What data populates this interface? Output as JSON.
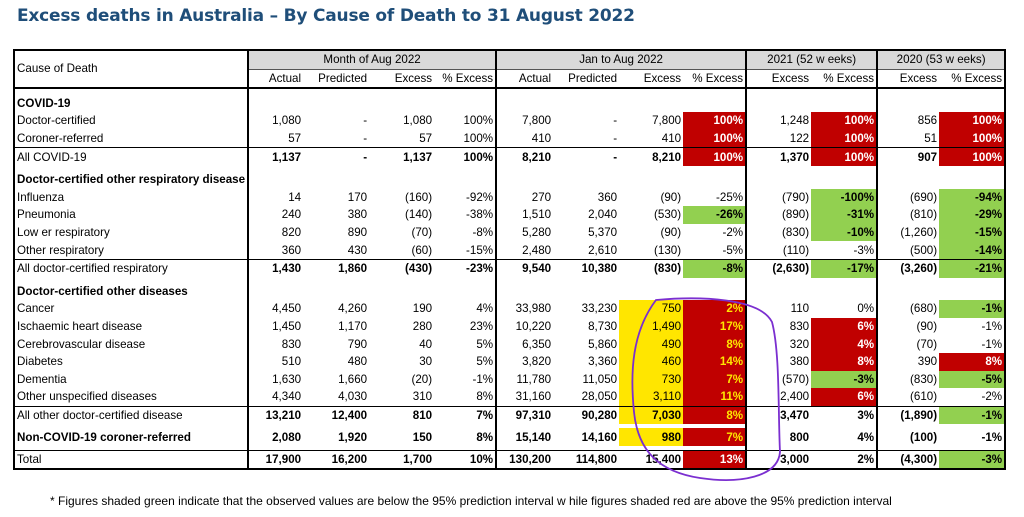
{
  "title": "Excess deaths in Australia – By Cause of Death to 31 August 2022",
  "table": {
    "cause_header": "Cause of Death",
    "groups": [
      {
        "label": "Month of Aug 2022",
        "columns": [
          "Actual",
          "Predicted",
          "Excess",
          "% Excess"
        ]
      },
      {
        "label": "Jan to Aug 2022",
        "columns": [
          "Actual",
          "Predicted",
          "Excess",
          "% Excess"
        ]
      },
      {
        "label": "2021 (52 w eeks)",
        "columns": [
          "Excess",
          "% Excess"
        ]
      },
      {
        "label": "2020 (53 w eeks)",
        "columns": [
          "Excess",
          "% Excess"
        ]
      }
    ],
    "sections": [
      {
        "heading": "COVID-19",
        "rows": [
          {
            "label": "Doctor-certified",
            "values": [
              "1,080",
              "-",
              "1,080",
              "100%",
              "7,800",
              "-",
              "7,800",
              "100%",
              "1,248",
              "100%",
              "856",
              "100%"
            ],
            "shading": [
              "",
              "",
              "",
              "",
              "",
              "",
              "",
              "red",
              "",
              "red",
              "",
              "red"
            ]
          },
          {
            "label": "Coroner-referred",
            "values": [
              "57",
              "-",
              "57",
              "100%",
              "410",
              "-",
              "410",
              "100%",
              "122",
              "100%",
              "51",
              "100%"
            ],
            "shading": [
              "",
              "",
              "",
              "",
              "",
              "",
              "",
              "red",
              "",
              "red",
              "",
              "red"
            ]
          }
        ],
        "total": {
          "label": "All COVID-19",
          "values": [
            "1,137",
            "-",
            "1,137",
            "100%",
            "8,210",
            "-",
            "8,210",
            "100%",
            "1,370",
            "100%",
            "907",
            "100%"
          ],
          "shading": [
            "",
            "",
            "",
            "",
            "",
            "",
            "",
            "red",
            "",
            "red",
            "",
            "red"
          ]
        }
      },
      {
        "heading": "Doctor-certified other respiratory disease",
        "rows": [
          {
            "label": "Influenza",
            "values": [
              "14",
              "170",
              "(160)",
              "-92%",
              "270",
              "360",
              "(90)",
              "-25%",
              "(790)",
              "-100%",
              "(690)",
              "-94%"
            ],
            "shading": [
              "",
              "",
              "",
              "",
              "",
              "",
              "",
              "",
              "",
              "green",
              "",
              "green"
            ]
          },
          {
            "label": "Pneumonia",
            "values": [
              "240",
              "380",
              "(140)",
              "-38%",
              "1,510",
              "2,040",
              "(530)",
              "-26%",
              "(890)",
              "-31%",
              "(810)",
              "-29%"
            ],
            "shading": [
              "",
              "",
              "",
              "",
              "",
              "",
              "",
              "green",
              "",
              "green",
              "",
              "green"
            ]
          },
          {
            "label": "Low er respiratory",
            "values": [
              "820",
              "890",
              "(70)",
              "-8%",
              "5,280",
              "5,370",
              "(90)",
              "-2%",
              "(830)",
              "-10%",
              "(1,260)",
              "-15%"
            ],
            "shading": [
              "",
              "",
              "",
              "",
              "",
              "",
              "",
              "",
              "",
              "green",
              "",
              "green"
            ]
          },
          {
            "label": "Other respiratory",
            "values": [
              "360",
              "430",
              "(60)",
              "-15%",
              "2,480",
              "2,610",
              "(130)",
              "-5%",
              "(110)",
              "-3%",
              "(500)",
              "-14%"
            ],
            "shading": [
              "",
              "",
              "",
              "",
              "",
              "",
              "",
              "",
              "",
              "",
              "",
              "green"
            ]
          }
        ],
        "total": {
          "label": "All doctor-certified respiratory",
          "values": [
            "1,430",
            "1,860",
            "(430)",
            "-23%",
            "9,540",
            "10,380",
            "(830)",
            "-8%",
            "(2,630)",
            "-17%",
            "(3,260)",
            "-21%"
          ],
          "shading": [
            "",
            "",
            "",
            "",
            "",
            "",
            "",
            "green",
            "",
            "green",
            "",
            "green"
          ]
        }
      },
      {
        "heading": "Doctor-certified other diseases",
        "rows": [
          {
            "label": "Cancer",
            "values": [
              "4,450",
              "4,260",
              "190",
              "4%",
              "33,980",
              "33,230",
              "750",
              "2%",
              "110",
              "0%",
              "(680)",
              "-1%"
            ],
            "shading": [
              "",
              "",
              "",
              "",
              "",
              "",
              "yellow",
              "redY",
              "",
              "",
              "",
              "green"
            ]
          },
          {
            "label": "Ischaemic heart disease",
            "values": [
              "1,450",
              "1,170",
              "280",
              "23%",
              "10,220",
              "8,730",
              "1,490",
              "17%",
              "830",
              "6%",
              "(90)",
              "-1%"
            ],
            "shading": [
              "",
              "",
              "",
              "",
              "",
              "",
              "yellow",
              "redY",
              "",
              "red",
              "",
              ""
            ]
          },
          {
            "label": "Cerebrovascular disease",
            "values": [
              "830",
              "790",
              "40",
              "5%",
              "6,350",
              "5,860",
              "490",
              "8%",
              "320",
              "4%",
              "(70)",
              "-1%"
            ],
            "shading": [
              "",
              "",
              "",
              "",
              "",
              "",
              "yellow",
              "redY",
              "",
              "red",
              "",
              ""
            ]
          },
          {
            "label": "Diabetes",
            "values": [
              "510",
              "480",
              "30",
              "5%",
              "3,820",
              "3,360",
              "460",
              "14%",
              "380",
              "8%",
              "390",
              "8%"
            ],
            "shading": [
              "",
              "",
              "",
              "",
              "",
              "",
              "yellow",
              "redY",
              "",
              "red",
              "",
              "red"
            ]
          },
          {
            "label": "Dementia",
            "values": [
              "1,630",
              "1,660",
              "(20)",
              "-1%",
              "11,780",
              "11,050",
              "730",
              "7%",
              "(570)",
              "-3%",
              "(830)",
              "-5%"
            ],
            "shading": [
              "",
              "",
              "",
              "",
              "",
              "",
              "yellow",
              "redY",
              "",
              "green",
              "",
              "green"
            ]
          },
          {
            "label": "Other unspecified diseases",
            "values": [
              "4,340",
              "4,030",
              "310",
              "8%",
              "31,160",
              "28,050",
              "3,110",
              "11%",
              "2,400",
              "6%",
              "(610)",
              "-2%"
            ],
            "shading": [
              "",
              "",
              "",
              "",
              "",
              "",
              "yellow",
              "redY",
              "",
              "red",
              "",
              ""
            ]
          }
        ],
        "total": {
          "label": "All other doctor-certified disease",
          "values": [
            "13,210",
            "12,400",
            "810",
            "7%",
            "97,310",
            "90,280",
            "7,030",
            "8%",
            "3,470",
            "3%",
            "(1,890)",
            "-1%"
          ],
          "shading": [
            "",
            "",
            "",
            "",
            "",
            "",
            "yellow",
            "redY",
            "",
            "",
            "",
            "green"
          ]
        }
      }
    ],
    "coroner_row": {
      "label": "Non-COVID-19 coroner-referred",
      "values": [
        "2,080",
        "1,920",
        "150",
        "8%",
        "15,140",
        "14,160",
        "980",
        "7%",
        "800",
        "4%",
        "(100)",
        "-1%"
      ],
      "shading": [
        "",
        "",
        "",
        "",
        "",
        "",
        "yellow",
        "redY",
        "",
        "",
        "",
        ""
      ]
    },
    "total_row": {
      "label": "Total",
      "values": [
        "17,900",
        "16,200",
        "1,700",
        "10%",
        "130,200",
        "114,800",
        "15,400",
        "13%",
        "3,000",
        "2%",
        "(4,300)",
        "-3%"
      ],
      "shading": [
        "",
        "",
        "",
        "",
        "",
        "",
        "",
        "red",
        "",
        "",
        "",
        "green"
      ]
    }
  },
  "footnote": "* Figures shaded green indicate that the observed values are below  the 95% prediction interval w hile figures shaded red are above the 95% prediction interval",
  "colors": {
    "title": "#1f4e79",
    "red": "#c00000",
    "green": "#92d050",
    "highlight": "#ffe600",
    "annotation": "#7b2fd0",
    "header_bg": "#d9d9d9"
  }
}
